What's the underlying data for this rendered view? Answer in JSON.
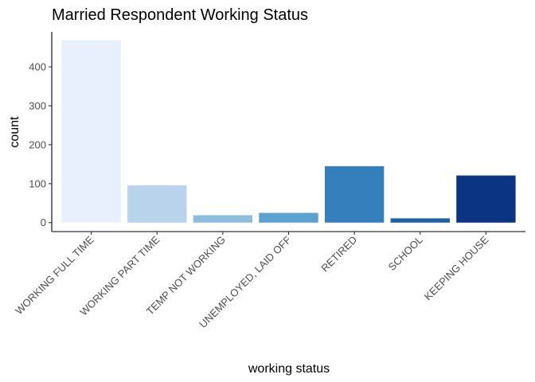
{
  "chart_data": {
    "type": "bar",
    "title": "Married Respondent Working Status",
    "xlabel": "working status",
    "ylabel": "count",
    "categories": [
      "WORKING FULL TIME",
      "WORKING PART TIME",
      "TEMP NOT WORKING",
      "UNEMPLOYED, LAID OFF",
      "RETIRED",
      "SCHOOL",
      "KEEPING HOUSE"
    ],
    "values": [
      468,
      96,
      19,
      25,
      145,
      11,
      121
    ],
    "colors": [
      "#e8effd",
      "#bad3ec",
      "#8dbedd",
      "#5ba1d0",
      "#367fbd",
      "#1c60a6",
      "#0b3482"
    ],
    "ylim": [
      -23,
      490
    ],
    "yticks": [
      0,
      100,
      200,
      300,
      400
    ],
    "grid": false,
    "legend": "none"
  }
}
